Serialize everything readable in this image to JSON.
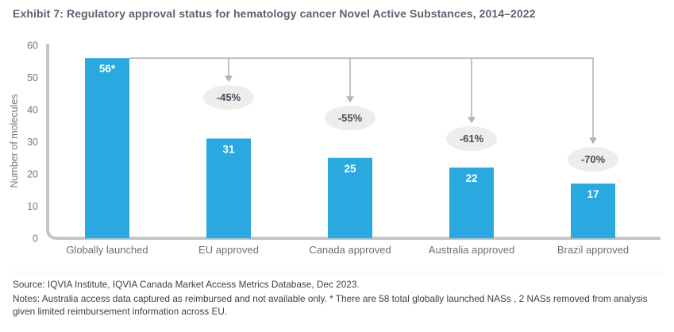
{
  "exhibit": {
    "title": "Exhibit 7: Regulatory approval status for hematology cancer Novel Active Substances, 2014–2022"
  },
  "chart_data": {
    "type": "bar",
    "title": "Exhibit 7: Regulatory approval status for hematology cancer Novel Active Substances, 2014–2022",
    "categories": [
      "Globally launched",
      "EU approved",
      "Canada approved",
      "Australia approved",
      "Brazil approved"
    ],
    "values": [
      56,
      31,
      25,
      22,
      17
    ],
    "bar_value_labels": [
      "56*",
      "31",
      "25",
      "22",
      "17"
    ],
    "decline_badges": [
      null,
      "-45%",
      "-55%",
      "-61%",
      "-70%"
    ],
    "xlabel": "",
    "ylabel": "Number of molecules",
    "ylim": [
      0,
      60
    ],
    "ytick_step": 10,
    "ytick_labels": [
      "0",
      "10",
      "20",
      "30",
      "40",
      "50",
      "60"
    ],
    "grid": false,
    "legend_position": "none",
    "colors": {
      "bar": "#29A9E0",
      "bar_value_label": "#FFFFFF",
      "badge_fill": "#EDEDED",
      "badge_text": "#4A4A58",
      "arrow": "#B3B3B3",
      "axis_line": "#C6C6C6",
      "tick_label": "#75777B",
      "category_label": "#6D6F73",
      "title_text": "#5A6372",
      "footer_text": "#3D3F47"
    }
  },
  "footer": {
    "source": "Source: IQVIA Institute, IQVIA Canada Market Access Metrics Database, Dec 2023.",
    "notes": "Notes: Australia access data captured as reimbursed and not available only. * There are 58 total globally launched NASs , 2 NASs removed from analysis given limited reimbursement information across EU."
  }
}
